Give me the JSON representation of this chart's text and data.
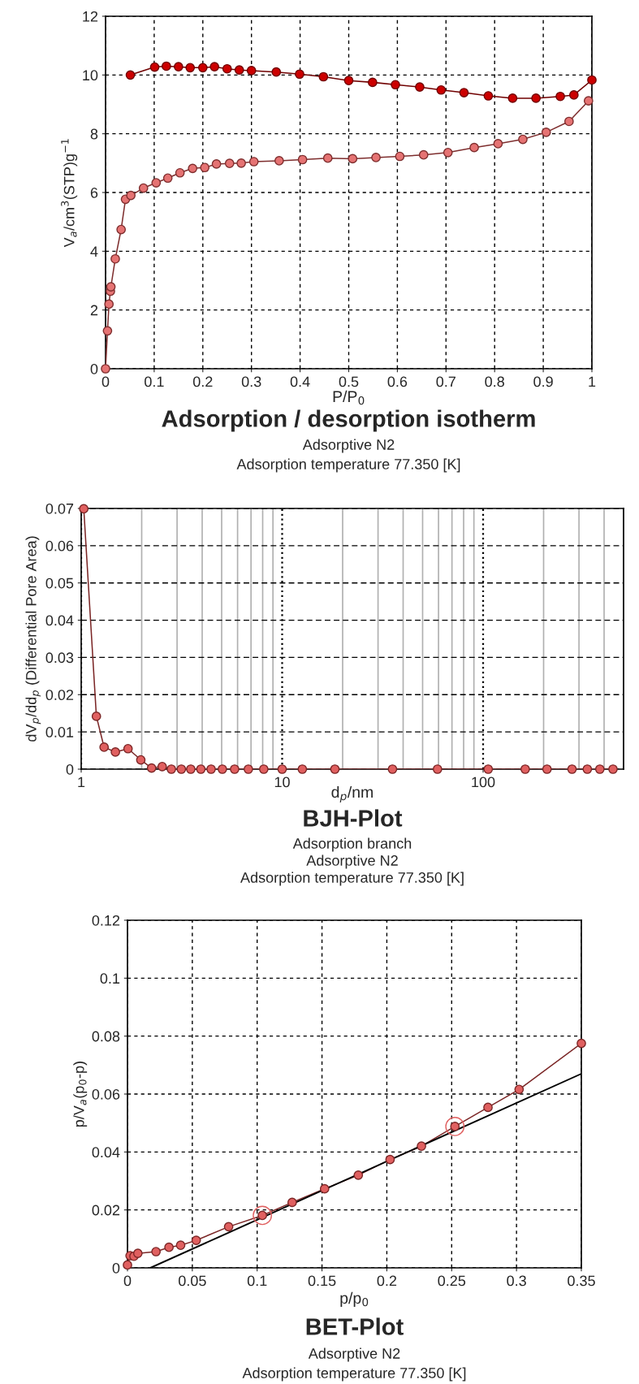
{
  "chart_data": [
    {
      "type": "line",
      "title": "Adsorption / desorption isotherm",
      "xlabel": "P/P$_{0}$",
      "ylabel": "V$_{a}$/cm$^{3}$(STP)g$^{−1}$",
      "annotations": [
        "Adsorptive N2",
        "Adsorption temperature 77.350 [K]"
      ],
      "xlim": [
        0,
        1
      ],
      "xticks": [
        0,
        0.1,
        0.2,
        0.3,
        0.4,
        0.5,
        0.6,
        0.7,
        0.8,
        0.9,
        1
      ],
      "ylim": [
        0,
        12
      ],
      "yticks": [
        0,
        2,
        4,
        6,
        8,
        10,
        12
      ],
      "grid": true,
      "legend": false,
      "marker": "circle",
      "line_style": "solid",
      "series": [
        {
          "color": "#e57373",
          "x": [
            0,
            0.004,
            0.007,
            0.01,
            0.011,
            0.02,
            0.032,
            0.041,
            0.052,
            0.078,
            0.104,
            0.128,
            0.153,
            0.179,
            0.204,
            0.228,
            0.255,
            0.279,
            0.305,
            0.357,
            0.405,
            0.457,
            0.508,
            0.556,
            0.605,
            0.654,
            0.704,
            0.758,
            0.807,
            0.858,
            0.906,
            0.953,
            0.993
          ],
          "values": [
            0,
            1.29,
            2.2,
            2.64,
            2.79,
            3.74,
            4.74,
            5.77,
            5.9,
            6.15,
            6.33,
            6.49,
            6.67,
            6.82,
            6.85,
            6.97,
            6.99,
            7.0,
            7.05,
            7.08,
            7.12,
            7.17,
            7.15,
            7.19,
            7.23,
            7.28,
            7.36,
            7.53,
            7.66,
            7.81,
            8.05,
            8.42,
            9.12
          ]
        },
        {
          "color": "#cc0000",
          "x": [
            1.0,
            0.963,
            0.935,
            0.885,
            0.837,
            0.787,
            0.737,
            0.69,
            0.646,
            0.596,
            0.549,
            0.5,
            0.448,
            0.399,
            0.351,
            0.3,
            0.275,
            0.25,
            0.224,
            0.2,
            0.174,
            0.15,
            0.125,
            0.101,
            0.051
          ],
          "values": [
            9.83,
            9.32,
            9.27,
            9.21,
            9.21,
            9.29,
            9.4,
            9.49,
            9.59,
            9.67,
            9.75,
            9.81,
            9.94,
            10.03,
            10.1,
            10.15,
            10.17,
            10.21,
            10.28,
            10.25,
            10.25,
            10.28,
            10.3,
            10.27,
            10.0
          ]
        }
      ]
    },
    {
      "type": "line",
      "title": "BJH-Plot",
      "xlabel": "d$_{p}$/nm",
      "ylabel": "dV$_{p}$/dd$_{p}$ (Differential Pore Area)",
      "annotations": [
        "Adsorption branch",
        "Adsorptive N2",
        "Adsorption temperature 77.350 [K]"
      ],
      "log": "x",
      "xlim": [
        1,
        500
      ],
      "xticks": [
        1,
        10,
        100
      ],
      "ylim": [
        0,
        0.07
      ],
      "yticks": [
        0,
        0.01,
        0.02,
        0.03,
        0.04,
        0.05,
        0.06,
        0.07
      ],
      "grid": true,
      "legend": false,
      "marker": "circle",
      "line_style": "solid",
      "series": [
        {
          "color": "#e06060",
          "x": [
            1.03,
            1.19,
            1.3,
            1.48,
            1.71,
            1.98,
            2.24,
            2.53,
            2.81,
            3.15,
            3.51,
            3.94,
            4.43,
            5.04,
            5.8,
            6.79,
            8.1,
            10,
            12.6,
            18.3,
            35.4,
            59.3,
            106,
            162,
            208,
            277,
            330,
            381,
            443
          ],
          "values": [
            0.0699,
            0.0142,
            0.0059,
            0.0046,
            0.0055,
            0.0025,
            0.0003,
            0.0007,
            0,
            0,
            0,
            0,
            0,
            0,
            0,
            0,
            0,
            0,
            0,
            0,
            0,
            0,
            0,
            0,
            0,
            0,
            0,
            0,
            0
          ]
        }
      ]
    },
    {
      "type": "line",
      "title": "BET-Plot",
      "xlabel": "p/p$_{0}$",
      "ylabel": "p/V$_{a}$(p$_{0}$-p)",
      "annotations": [
        "Adsorptive N2",
        "Adsorption temperature 77.350 [K]"
      ],
      "xlim": [
        0,
        0.35
      ],
      "xticks": [
        0,
        0.05,
        0.1,
        0.15,
        0.2,
        0.25,
        0.3,
        0.35
      ],
      "ylim": [
        0,
        0.12
      ],
      "yticks": [
        0,
        0.02,
        0.04,
        0.06,
        0.08,
        0.1,
        0.12
      ],
      "grid": true,
      "legend": false,
      "marker": "circle",
      "line_style": "solid",
      "series": [
        {
          "color": "#e06060",
          "x": [
            0,
            0.002,
            0.005,
            0.008,
            0.022,
            0.032,
            0.041,
            0.053,
            0.078,
            0.104,
            0.127,
            0.152,
            0.178,
            0.2025,
            0.2267,
            0.2525,
            0.278,
            0.302,
            0.35
          ],
          "values": [
            0.001,
            0.0042,
            0.004,
            0.005,
            0.0056,
            0.0071,
            0.0078,
            0.0095,
            0.0142,
            0.0181,
            0.0226,
            0.0273,
            0.032,
            0.0374,
            0.042,
            0.0488,
            0.0554,
            0.0616,
            0.0775
          ]
        },
        {
          "type": "scatter",
          "color": "#e06060",
          "marker": "circle",
          "x": [
            0.104,
            0.2525
          ],
          "values": [
            0.0181,
            0.0488
          ]
        },
        {
          "color": "#000000",
          "marker": "none",
          "x": [
            0.0177,
            0.35
          ],
          "values": [
            0,
            0.067
          ]
        }
      ]
    }
  ]
}
